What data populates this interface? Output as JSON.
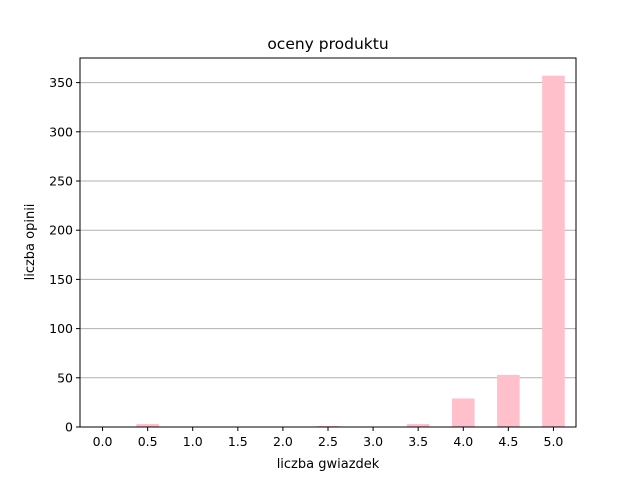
{
  "chart_data": {
    "type": "bar",
    "title": "oceny produktu",
    "xlabel": "liczba gwiazdek",
    "ylabel": "liczba opinii",
    "categories": [
      "0.0",
      "0.5",
      "1.0",
      "1.5",
      "2.0",
      "2.5",
      "3.0",
      "3.5",
      "4.0",
      "4.5",
      "5.0"
    ],
    "values": [
      0,
      3,
      0,
      0,
      0,
      1,
      0,
      3,
      29,
      53,
      357
    ],
    "ylim": [
      0,
      375
    ],
    "yticks": [
      "0",
      "50",
      "100",
      "150",
      "200",
      "250",
      "300",
      "350"
    ],
    "grid": "horizontal",
    "bar_color": "#ffc0cb",
    "grid_color": "#b0b0b0"
  }
}
